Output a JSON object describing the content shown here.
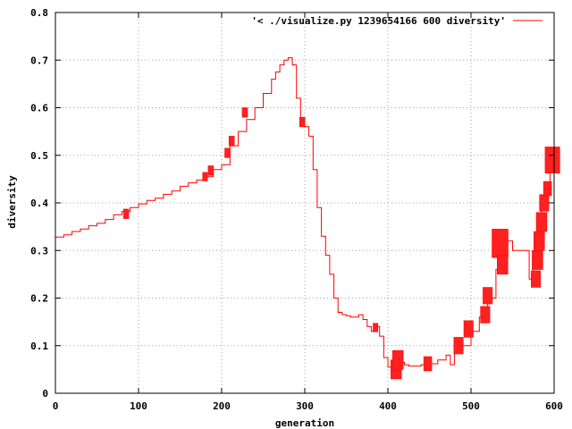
{
  "chart_data": {
    "type": "line",
    "title": "",
    "xlabel": "generation",
    "ylabel": "diversity",
    "xlim": [
      0,
      600
    ],
    "ylim": [
      0,
      0.8
    ],
    "grid": true,
    "legend_position": "top-right",
    "x_ticks": [
      "0",
      "100",
      "200",
      "300",
      "400",
      "500",
      "600"
    ],
    "y_ticks": [
      "0",
      "0.1",
      "0.2",
      "0.3",
      "0.4",
      "0.5",
      "0.6",
      "0.7",
      "0.8"
    ],
    "x_tick_values": [
      0,
      100,
      200,
      300,
      400,
      500,
      600
    ],
    "y_tick_values": [
      0,
      0.1,
      0.2,
      0.3,
      0.4,
      0.5,
      0.6,
      0.7,
      0.8
    ],
    "series": [
      {
        "name": "'< ./visualize.py 1239654166 600 diversity'",
        "color": "#ff0000",
        "x": [
          0,
          10,
          20,
          30,
          40,
          50,
          60,
          70,
          80,
          90,
          100,
          110,
          120,
          130,
          140,
          150,
          160,
          170,
          180,
          190,
          200,
          210,
          220,
          230,
          240,
          250,
          260,
          265,
          270,
          275,
          280,
          285,
          290,
          295,
          300,
          305,
          310,
          315,
          320,
          325,
          330,
          335,
          340,
          345,
          350,
          355,
          360,
          365,
          370,
          375,
          380,
          385,
          390,
          395,
          400,
          405,
          410,
          415,
          420,
          425,
          430,
          440,
          450,
          460,
          470,
          475,
          480,
          490,
          500,
          510,
          520,
          530,
          540,
          550,
          560,
          570,
          575,
          580,
          585,
          590,
          595,
          600
        ],
        "y": [
          0.328,
          0.333,
          0.34,
          0.345,
          0.352,
          0.357,
          0.365,
          0.375,
          0.382,
          0.39,
          0.398,
          0.405,
          0.41,
          0.418,
          0.425,
          0.435,
          0.442,
          0.448,
          0.455,
          0.47,
          0.48,
          0.52,
          0.55,
          0.575,
          0.6,
          0.63,
          0.66,
          0.675,
          0.69,
          0.7,
          0.705,
          0.69,
          0.62,
          0.57,
          0.56,
          0.54,
          0.47,
          0.39,
          0.33,
          0.29,
          0.25,
          0.2,
          0.17,
          0.165,
          0.163,
          0.16,
          0.16,
          0.165,
          0.155,
          0.14,
          0.13,
          0.14,
          0.12,
          0.075,
          0.055,
          0.05,
          0.075,
          0.065,
          0.06,
          0.057,
          0.057,
          0.06,
          0.062,
          0.07,
          0.08,
          0.06,
          0.085,
          0.1,
          0.13,
          0.16,
          0.2,
          0.26,
          0.32,
          0.3,
          0.3,
          0.24,
          0.28,
          0.34,
          0.4,
          0.44,
          0.49,
          0.49
        ]
      }
    ],
    "blocks": [
      {
        "x": 85,
        "y": 0.377,
        "h": 0.02
      },
      {
        "x": 180,
        "y": 0.455,
        "h": 0.018
      },
      {
        "x": 187,
        "y": 0.468,
        "h": 0.02
      },
      {
        "x": 207,
        "y": 0.505,
        "h": 0.02
      },
      {
        "x": 212,
        "y": 0.53,
        "h": 0.02
      },
      {
        "x": 228,
        "y": 0.59,
        "h": 0.02
      },
      {
        "x": 297,
        "y": 0.57,
        "h": 0.02
      },
      {
        "x": 385,
        "y": 0.138,
        "h": 0.018
      },
      {
        "x": 410,
        "y": 0.05,
        "h": 0.04
      },
      {
        "x": 412,
        "y": 0.07,
        "h": 0.04
      },
      {
        "x": 448,
        "y": 0.062,
        "h": 0.03
      },
      {
        "x": 485,
        "y": 0.1,
        "h": 0.035
      },
      {
        "x": 497,
        "y": 0.135,
        "h": 0.035
      },
      {
        "x": 517,
        "y": 0.165,
        "h": 0.035
      },
      {
        "x": 520,
        "y": 0.205,
        "h": 0.035
      },
      {
        "x": 535,
        "y": 0.315,
        "h": 0.06
      },
      {
        "x": 538,
        "y": 0.27,
        "h": 0.04
      },
      {
        "x": 578,
        "y": 0.24,
        "h": 0.035
      },
      {
        "x": 580,
        "y": 0.28,
        "h": 0.04
      },
      {
        "x": 582,
        "y": 0.32,
        "h": 0.04
      },
      {
        "x": 585,
        "y": 0.36,
        "h": 0.04
      },
      {
        "x": 588,
        "y": 0.4,
        "h": 0.035
      },
      {
        "x": 592,
        "y": 0.43,
        "h": 0.03
      },
      {
        "x": 598,
        "y": 0.49,
        "h": 0.055
      }
    ]
  }
}
